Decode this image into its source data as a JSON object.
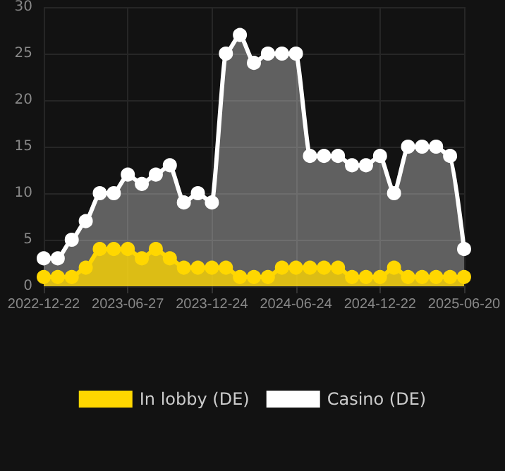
{
  "chart_data": {
    "type": "area",
    "categories": [
      "2022-12-22",
      null,
      null,
      null,
      null,
      null,
      "2023-06-27",
      null,
      null,
      null,
      null,
      null,
      "2023-12-24",
      null,
      null,
      null,
      null,
      null,
      "2024-06-24",
      null,
      null,
      null,
      null,
      null,
      "2024-12-22",
      null,
      null,
      null,
      null,
      null,
      "2025-06-20"
    ],
    "series": [
      {
        "name": "In lobby (DE)",
        "color": "#ffd700",
        "values": [
          1,
          1,
          1,
          2,
          4,
          4,
          4,
          3,
          4,
          3,
          2,
          2,
          2,
          2,
          1,
          1,
          1,
          2,
          2,
          2,
          2,
          2,
          1,
          1,
          1,
          2,
          1,
          1,
          1,
          1,
          1
        ]
      },
      {
        "name": "Casino (DE)",
        "color": "#ffffff",
        "values": [
          3,
          3,
          5,
          7,
          10,
          10,
          12,
          11,
          12,
          13,
          9,
          10,
          9,
          25,
          27,
          24,
          25,
          25,
          25,
          14,
          14,
          14,
          13,
          13,
          14,
          10,
          15,
          15,
          15,
          14,
          4
        ]
      }
    ],
    "ylim": [
      0,
      30
    ],
    "yticks": [
      0,
      5,
      10,
      15,
      20,
      25,
      30
    ],
    "grid": true,
    "legend": "bottom",
    "marker": "circle"
  }
}
